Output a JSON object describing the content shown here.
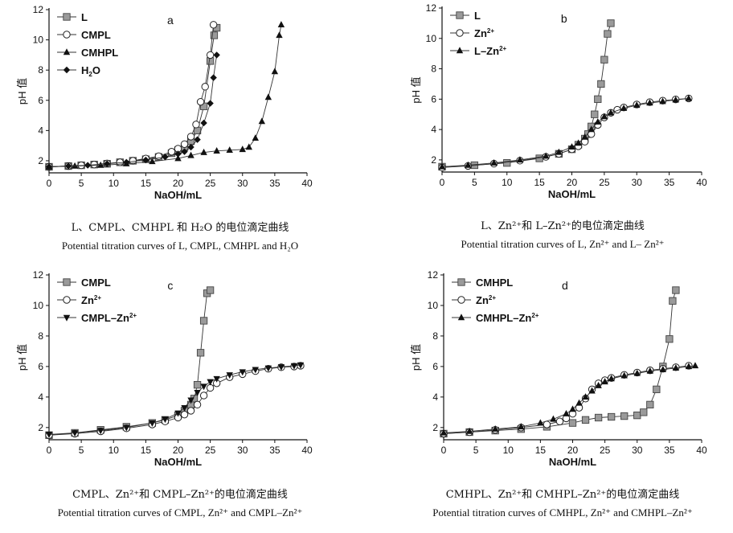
{
  "chart_data": [
    {
      "id": "a",
      "type": "line",
      "panel_label": "a",
      "xlabel": "NaOH/mL",
      "ylabel": "pH 值",
      "xlim": [
        0,
        40
      ],
      "ylim": [
        1.2,
        12
      ],
      "xticks": [
        0,
        5,
        10,
        15,
        20,
        25,
        30,
        35,
        40
      ],
      "yticks": [
        2,
        4,
        6,
        8,
        10,
        12
      ],
      "legend_position": "top-left",
      "caption_cn": "L、CMPL、CMHPL 和 H₂O 的电位滴定曲线",
      "caption_en": "Potential titration curves of L, CMPL, CMHPL and H₂O",
      "series": [
        {
          "name": "L",
          "marker": "square-gray",
          "x": [
            0,
            3,
            5,
            7,
            9,
            11,
            13,
            15,
            17,
            19,
            20,
            21,
            22,
            23,
            24,
            25,
            25.6,
            26
          ],
          "y": [
            1.6,
            1.65,
            1.7,
            1.75,
            1.8,
            1.9,
            2.0,
            2.1,
            2.25,
            2.5,
            2.7,
            2.9,
            3.3,
            4.0,
            5.6,
            8.6,
            10.3,
            10.8
          ]
        },
        {
          "name": "CMPL",
          "marker": "circle-open",
          "x": [
            0,
            3,
            5,
            7,
            9,
            11,
            13,
            15,
            17,
            19,
            20,
            21,
            22,
            22.8,
            23.5,
            24.2,
            25,
            25.5
          ],
          "y": [
            1.6,
            1.65,
            1.7,
            1.75,
            1.82,
            1.9,
            2.0,
            2.15,
            2.3,
            2.6,
            2.8,
            3.1,
            3.6,
            4.4,
            5.9,
            6.9,
            9.0,
            11.0
          ]
        },
        {
          "name": "CMHPL",
          "marker": "triangle-black",
          "x": [
            0,
            4,
            8,
            12,
            16,
            20,
            22,
            24,
            26,
            28,
            30,
            31,
            32,
            33,
            34,
            35,
            35.7,
            36
          ],
          "y": [
            1.6,
            1.65,
            1.7,
            1.8,
            1.95,
            2.15,
            2.35,
            2.55,
            2.65,
            2.7,
            2.75,
            2.9,
            3.5,
            4.6,
            6.2,
            7.9,
            10.3,
            11.0
          ]
        },
        {
          "name": "H₂O",
          "marker": "diamond-black",
          "x": [
            0,
            3,
            6,
            9,
            12,
            15,
            18,
            20,
            21,
            22,
            23,
            24,
            25,
            25.5,
            26
          ],
          "y": [
            1.6,
            1.65,
            1.7,
            1.8,
            1.9,
            2.05,
            2.25,
            2.45,
            2.6,
            2.9,
            3.4,
            4.5,
            5.8,
            7.5,
            9.0
          ]
        }
      ]
    },
    {
      "id": "b",
      "type": "line",
      "panel_label": "b",
      "xlabel": "NaOH/mL",
      "ylabel": "pH 值",
      "xlim": [
        0,
        40
      ],
      "ylim": [
        1.2,
        12
      ],
      "xticks": [
        0,
        5,
        10,
        15,
        20,
        25,
        30,
        35,
        40
      ],
      "yticks": [
        2,
        4,
        6,
        8,
        10,
        12
      ],
      "legend_position": "top-left",
      "caption_cn": "L、Zn²⁺和 L–Zn²⁺的电位滴定曲线",
      "caption_en": "Potential titration curves of L, Zn²⁺ and L– Zn²⁺",
      "series": [
        {
          "name": "L",
          "marker": "square-gray",
          "x": [
            0,
            5,
            10,
            15,
            18,
            20,
            21,
            22,
            22.5,
            23,
            23.5,
            24,
            24.5,
            25,
            25.5,
            26
          ],
          "y": [
            1.55,
            1.65,
            1.8,
            2.1,
            2.4,
            2.7,
            3.0,
            3.4,
            3.7,
            4.2,
            5.0,
            6.0,
            7.0,
            8.6,
            10.3,
            11.0
          ]
        },
        {
          "name": "Zn²⁺",
          "marker": "circle-open",
          "x": [
            0,
            4,
            8,
            12,
            16,
            18,
            20,
            21,
            22,
            23,
            24,
            25,
            26,
            27,
            28,
            30,
            32,
            34,
            36,
            38
          ],
          "y": [
            1.5,
            1.6,
            1.75,
            1.95,
            2.2,
            2.4,
            2.7,
            2.9,
            3.2,
            3.7,
            4.3,
            4.8,
            5.1,
            5.3,
            5.45,
            5.65,
            5.8,
            5.9,
            5.98,
            6.05
          ]
        },
        {
          "name": "L–Zn²⁺",
          "marker": "triangle-black",
          "x": [
            0,
            4,
            8,
            12,
            16,
            18,
            20,
            21,
            22,
            23,
            24,
            25,
            26,
            28,
            30,
            32,
            34,
            36,
            38
          ],
          "y": [
            1.55,
            1.65,
            1.8,
            2.0,
            2.25,
            2.5,
            2.85,
            3.1,
            3.5,
            4.0,
            4.5,
            4.85,
            5.1,
            5.4,
            5.6,
            5.75,
            5.85,
            5.95,
            6.05
          ]
        }
      ]
    },
    {
      "id": "c",
      "type": "line",
      "panel_label": "c",
      "xlabel": "NaOH/mL",
      "ylabel": "pH 值",
      "xlim": [
        0,
        40
      ],
      "ylim": [
        1.2,
        12
      ],
      "xticks": [
        0,
        5,
        10,
        15,
        20,
        25,
        30,
        35,
        40
      ],
      "yticks": [
        2,
        4,
        6,
        8,
        10,
        12
      ],
      "legend_position": "top-left",
      "caption_cn": "CMPL、Zn²⁺和 CMPL–Zn²⁺的电位滴定曲线",
      "caption_en": "Potential titration curves of CMPL, Zn²⁺ and CMPL–Zn²⁺",
      "series": [
        {
          "name": "CMPL",
          "marker": "square-gray",
          "x": [
            0,
            4,
            8,
            12,
            16,
            18,
            20,
            21,
            22,
            22.5,
            23,
            23.5,
            24,
            24.5,
            25
          ],
          "y": [
            1.5,
            1.65,
            1.85,
            2.05,
            2.3,
            2.5,
            2.8,
            3.1,
            3.5,
            3.9,
            4.8,
            6.9,
            9.0,
            10.8,
            11.0
          ]
        },
        {
          "name": "Zn²⁺",
          "marker": "circle-open",
          "x": [
            0,
            4,
            8,
            12,
            16,
            18,
            20,
            21,
            22,
            23,
            24,
            25,
            26,
            28,
            30,
            32,
            34,
            36,
            38,
            39
          ],
          "y": [
            1.5,
            1.6,
            1.75,
            1.95,
            2.2,
            2.4,
            2.65,
            2.85,
            3.1,
            3.5,
            4.1,
            4.6,
            4.9,
            5.3,
            5.5,
            5.7,
            5.85,
            5.95,
            6.0,
            6.05
          ]
        },
        {
          "name": "CMPL–Zn²⁺",
          "marker": "tri-down-black",
          "x": [
            0,
            4,
            8,
            12,
            16,
            18,
            20,
            21,
            22,
            23,
            24,
            25,
            26,
            28,
            30,
            32,
            34,
            36,
            38,
            39
          ],
          "y": [
            1.55,
            1.65,
            1.8,
            2.0,
            2.3,
            2.55,
            2.95,
            3.3,
            3.8,
            4.3,
            4.7,
            5.0,
            5.2,
            5.45,
            5.65,
            5.8,
            5.9,
            5.98,
            6.05,
            6.1
          ]
        }
      ]
    },
    {
      "id": "d",
      "type": "line",
      "panel_label": "d",
      "xlabel": "NaOH/mL",
      "ylabel": "pH 值",
      "xlim": [
        0,
        40
      ],
      "ylim": [
        1.2,
        12
      ],
      "xticks": [
        0,
        5,
        10,
        15,
        20,
        25,
        30,
        35,
        40
      ],
      "yticks": [
        2,
        4,
        6,
        8,
        10,
        12
      ],
      "legend_position": "top-left",
      "caption_cn": "CMHPL、Zn²⁺和 CMHPL–Zn²⁺的电位滴定曲线",
      "caption_en": "Potential titration curves of CMHPL, Zn²⁺ and CMHPL–Zn²⁺",
      "series": [
        {
          "name": "CMHPL",
          "marker": "square-gray",
          "x": [
            0,
            4,
            8,
            12,
            16,
            20,
            22,
            24,
            26,
            28,
            30,
            31,
            32,
            33,
            34,
            35,
            35.5,
            36
          ],
          "y": [
            1.6,
            1.7,
            1.8,
            1.9,
            2.05,
            2.3,
            2.5,
            2.65,
            2.7,
            2.75,
            2.8,
            3.0,
            3.5,
            4.5,
            6.0,
            7.8,
            10.3,
            11.0
          ]
        },
        {
          "name": "Zn²⁺",
          "marker": "circle-open",
          "x": [
            0,
            4,
            8,
            12,
            16,
            18,
            19,
            20,
            21,
            22,
            23,
            24,
            25,
            26,
            28,
            30,
            32,
            34,
            36,
            38
          ],
          "y": [
            1.6,
            1.7,
            1.85,
            2.0,
            2.2,
            2.4,
            2.6,
            2.9,
            3.3,
            3.9,
            4.5,
            4.9,
            5.1,
            5.25,
            5.45,
            5.6,
            5.75,
            5.85,
            5.95,
            6.05
          ]
        },
        {
          "name": "CMHPL–Zn²⁺",
          "marker": "triangle-black",
          "x": [
            0,
            4,
            8,
            12,
            15,
            17,
            19,
            20,
            21,
            22,
            23,
            24,
            25,
            26,
            28,
            30,
            32,
            34,
            36,
            38,
            39
          ],
          "y": [
            1.65,
            1.75,
            1.9,
            2.05,
            2.3,
            2.55,
            2.9,
            3.2,
            3.6,
            4.0,
            4.4,
            4.75,
            5.0,
            5.2,
            5.4,
            5.55,
            5.7,
            5.8,
            5.9,
            6.0,
            6.05
          ]
        }
      ]
    }
  ]
}
